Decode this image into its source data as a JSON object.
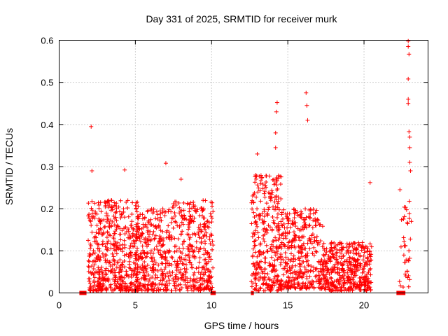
{
  "chart_data": {
    "type": "scatter",
    "title": "Day 331 of 2025, SRMTID for receiver murk",
    "xlabel": "GPS time / hours",
    "ylabel": "SRMTID / TECUs",
    "xlim": [
      0,
      24.2
    ],
    "ylim": [
      0,
      0.6
    ],
    "grid": true,
    "series_color": "#ff0000",
    "marker": "plus",
    "x_ticks": [
      {
        "value": 0,
        "label": "0"
      },
      {
        "value": 5,
        "label": "5"
      },
      {
        "value": 10,
        "label": "10"
      },
      {
        "value": 15,
        "label": "15"
      },
      {
        "value": 20,
        "label": "20"
      }
    ],
    "y_ticks": [
      {
        "value": 0,
        "label": "0"
      },
      {
        "value": 0.1,
        "label": "0.1"
      },
      {
        "value": 0.2,
        "label": "0.2"
      },
      {
        "value": 0.3,
        "label": "0.3"
      },
      {
        "value": 0.4,
        "label": "0.4"
      },
      {
        "value": 0.5,
        "label": "0.5"
      },
      {
        "value": 0.6,
        "label": "0.6"
      }
    ],
    "highlight_points": [
      {
        "x": 2.1,
        "y": 0.395
      },
      {
        "x": 2.15,
        "y": 0.29
      },
      {
        "x": 4.3,
        "y": 0.292
      },
      {
        "x": 7.0,
        "y": 0.308
      },
      {
        "x": 8.0,
        "y": 0.27
      },
      {
        "x": 13.0,
        "y": 0.33
      },
      {
        "x": 14.3,
        "y": 0.452
      },
      {
        "x": 14.25,
        "y": 0.43
      },
      {
        "x": 14.2,
        "y": 0.38
      },
      {
        "x": 14.2,
        "y": 0.345
      },
      {
        "x": 16.2,
        "y": 0.475
      },
      {
        "x": 16.25,
        "y": 0.445
      },
      {
        "x": 16.3,
        "y": 0.41
      },
      {
        "x": 20.4,
        "y": 0.262
      },
      {
        "x": 22.9,
        "y": 0.598
      },
      {
        "x": 22.9,
        "y": 0.585
      },
      {
        "x": 22.95,
        "y": 0.567
      },
      {
        "x": 22.9,
        "y": 0.508
      },
      {
        "x": 22.9,
        "y": 0.46
      },
      {
        "x": 22.9,
        "y": 0.45
      },
      {
        "x": 22.95,
        "y": 0.383
      },
      {
        "x": 23.0,
        "y": 0.37
      },
      {
        "x": 23.0,
        "y": 0.345
      },
      {
        "x": 23.0,
        "y": 0.31
      },
      {
        "x": 23.05,
        "y": 0.29
      }
    ],
    "clusters": [
      {
        "x_start": 1.9,
        "x_end": 5.2,
        "y_min": 0.005,
        "y_max": 0.22,
        "count": 520
      },
      {
        "x_start": 5.0,
        "x_end": 7.4,
        "y_min": 0.005,
        "y_max": 0.2,
        "count": 330
      },
      {
        "x_start": 7.4,
        "x_end": 10.1,
        "y_min": 0.005,
        "y_max": 0.22,
        "count": 360
      },
      {
        "x_start": 12.6,
        "x_end": 14.6,
        "y_min": 0.005,
        "y_max": 0.28,
        "count": 330
      },
      {
        "x_start": 14.5,
        "x_end": 17.3,
        "y_min": 0.01,
        "y_max": 0.2,
        "count": 380
      },
      {
        "x_start": 17.3,
        "x_end": 20.5,
        "y_min": 0.005,
        "y_max": 0.12,
        "count": 440
      },
      {
        "x_start": 22.3,
        "x_end": 23.1,
        "y_min": 0.01,
        "y_max": 0.25,
        "count": 40
      }
    ],
    "zero_runs": [
      {
        "x_start": 1.35,
        "x_end": 1.8,
        "y": 0.0
      },
      {
        "x_start": 9.95,
        "x_end": 10.25,
        "y": 0.0
      },
      {
        "x_start": 12.6,
        "x_end": 12.75,
        "y": 0.0
      },
      {
        "x_start": 22.15,
        "x_end": 22.7,
        "y": 0.0
      }
    ]
  }
}
